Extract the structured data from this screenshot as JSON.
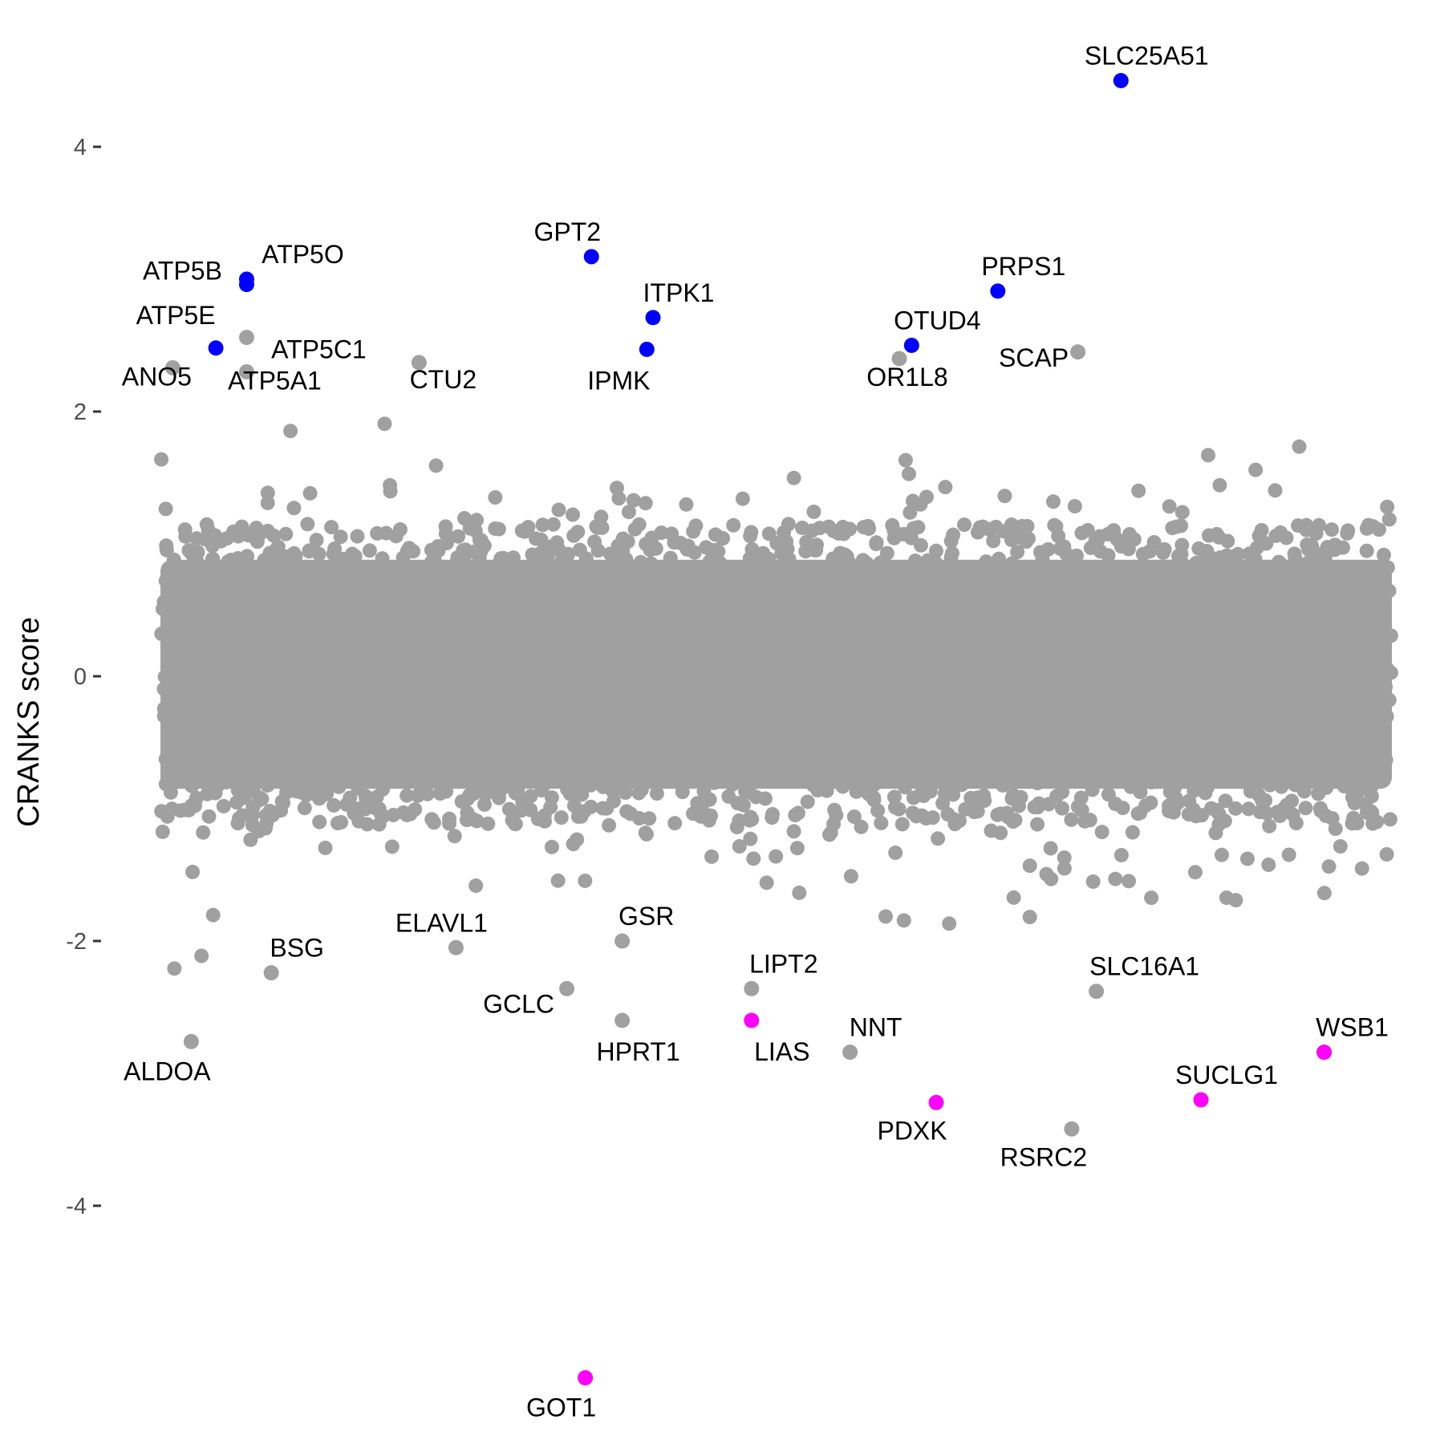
{
  "chart_data": {
    "type": "scatter",
    "title": "",
    "xlabel": "",
    "ylabel": "CRANKS score",
    "ylim": [
      -5.4,
      4.65
    ],
    "xlim": [
      0,
      1
    ],
    "grid": false,
    "legend": "none",
    "y_ticks": [
      {
        "value": 4,
        "label": "4"
      },
      {
        "value": 2,
        "label": "2"
      },
      {
        "value": 0,
        "label": "0"
      },
      {
        "value": -2,
        "label": "-2"
      },
      {
        "value": -4,
        "label": "-4"
      }
    ],
    "colors": {
      "background_points": "#a0a0a0",
      "high": "#0000ff",
      "low": "#ff00ff"
    },
    "background_cloud": {
      "note_color": "#a0a0a0",
      "y_core_range": [
        -0.85,
        0.9
      ],
      "y_scatter_range": [
        -2.3,
        2.4
      ]
    },
    "labeled_points": [
      {
        "gene": "SLC25A51",
        "x": 0.78,
        "y": 4.5,
        "group": "high"
      },
      {
        "gene": "GPT2",
        "x": 0.35,
        "y": 3.17,
        "group": "high"
      },
      {
        "gene": "PRPS1",
        "x": 0.68,
        "y": 2.91,
        "group": "high"
      },
      {
        "gene": "ATP5O",
        "x": 0.07,
        "y": 3.0,
        "group": "high"
      },
      {
        "gene": "ATP5B",
        "x": 0.07,
        "y": 2.96,
        "group": "high"
      },
      {
        "gene": "ITPK1",
        "x": 0.4,
        "y": 2.71,
        "group": "high"
      },
      {
        "gene": "OTUD4",
        "x": 0.61,
        "y": 2.5,
        "group": "high"
      },
      {
        "gene": "ATP5E",
        "x": 0.045,
        "y": 2.48,
        "group": "high"
      },
      {
        "gene": "IPMK",
        "x": 0.395,
        "y": 2.47,
        "group": "high"
      },
      {
        "gene": "ATP5C1",
        "x": 0.07,
        "y": 2.56,
        "group": "gray"
      },
      {
        "gene": "ANO5",
        "x": 0.01,
        "y": 2.33,
        "group": "gray"
      },
      {
        "gene": "ATP5A1",
        "x": 0.07,
        "y": 2.3,
        "group": "gray"
      },
      {
        "gene": "CTU2",
        "x": 0.21,
        "y": 2.37,
        "group": "gray"
      },
      {
        "gene": "OR1L8",
        "x": 0.6,
        "y": 2.4,
        "group": "gray"
      },
      {
        "gene": "SCAP",
        "x": 0.745,
        "y": 2.45,
        "group": "gray"
      },
      {
        "gene": "BSG",
        "x": 0.09,
        "y": -2.24,
        "group": "gray"
      },
      {
        "gene": "ELAVL1",
        "x": 0.24,
        "y": -2.05,
        "group": "gray"
      },
      {
        "gene": "GSR",
        "x": 0.375,
        "y": -2.0,
        "group": "gray"
      },
      {
        "gene": "LIPT2",
        "x": 0.48,
        "y": -2.36,
        "group": "gray"
      },
      {
        "gene": "GCLC",
        "x": 0.33,
        "y": -2.36,
        "group": "gray"
      },
      {
        "gene": "HPRT1",
        "x": 0.375,
        "y": -2.6,
        "group": "gray"
      },
      {
        "gene": "LIAS",
        "x": 0.48,
        "y": -2.6,
        "group": "low"
      },
      {
        "gene": "NNT",
        "x": 0.56,
        "y": -2.84,
        "group": "gray"
      },
      {
        "gene": "SLC16A1",
        "x": 0.76,
        "y": -2.38,
        "group": "gray"
      },
      {
        "gene": "WSB1",
        "x": 0.945,
        "y": -2.84,
        "group": "low"
      },
      {
        "gene": "SUCLG1",
        "x": 0.845,
        "y": -3.2,
        "group": "low"
      },
      {
        "gene": "PDXK",
        "x": 0.63,
        "y": -3.22,
        "group": "low"
      },
      {
        "gene": "RSRC2",
        "x": 0.74,
        "y": -3.42,
        "group": "gray"
      },
      {
        "gene": "ALDOA",
        "x": 0.025,
        "y": -2.76,
        "group": "gray"
      },
      {
        "gene": "GOT1",
        "x": 0.345,
        "y": -5.3,
        "group": "low"
      }
    ]
  }
}
